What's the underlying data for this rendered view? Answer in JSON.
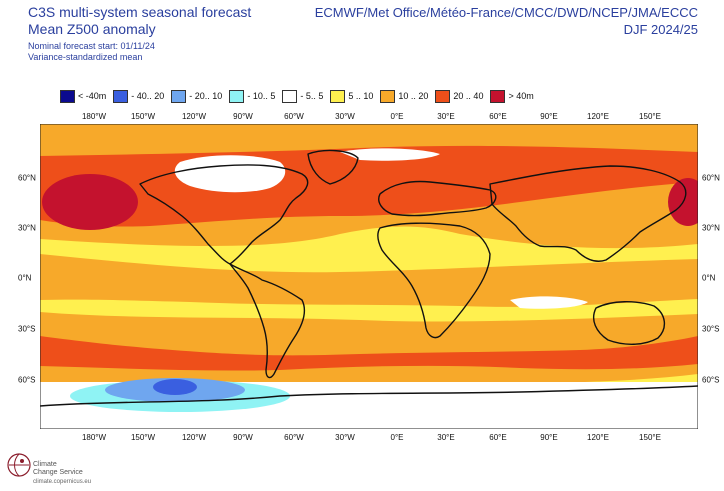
{
  "header": {
    "title_line1": "C3S multi-system seasonal forecast",
    "title_line2": "Mean Z500 anomaly",
    "forecast_start": "Nominal forecast start: 01/11/24",
    "method": "Variance-standardized mean",
    "centres": "ECMWF/Met Office/Météo-France/CMCC/DWD/NCEP/JMA/ECCC",
    "season": "DJF 2024/25"
  },
  "legend": [
    {
      "label": "< -40m",
      "color": "#0b0a8f"
    },
    {
      "label": "- 40.. 20",
      "color": "#3a5fe0"
    },
    {
      "label": "- 20.. 10",
      "color": "#6fa6ef"
    },
    {
      "label": "- 10.. 5",
      "color": "#8ff3f4"
    },
    {
      "label": "- 5.. 5",
      "color": "#ffffff"
    },
    {
      "label": "5 .. 10",
      "color": "#fff04f"
    },
    {
      "label": "10 .. 20",
      "color": "#f7a92a"
    },
    {
      "label": "20 .. 40",
      "color": "#ee4f1a"
    },
    {
      "label": "> 40m",
      "color": "#c4122e"
    }
  ],
  "lon_labels": [
    "180°W",
    "150°W",
    "120°W",
    "90°W",
    "60°W",
    "30°W",
    "0°E",
    "30°E",
    "60°E",
    "90°E",
    "120°E",
    "150°E"
  ],
  "lat_labels": [
    "60°N",
    "30°N",
    "0°N",
    "30°S",
    "60°S"
  ],
  "logo": {
    "org_line1": "Climate",
    "org_line2": "Change Service",
    "url": "climate.copernicus.eu"
  },
  "colors": {
    "title": "#2a3f9e",
    "coast": "#111111",
    "borders": "#8a8a8a"
  }
}
